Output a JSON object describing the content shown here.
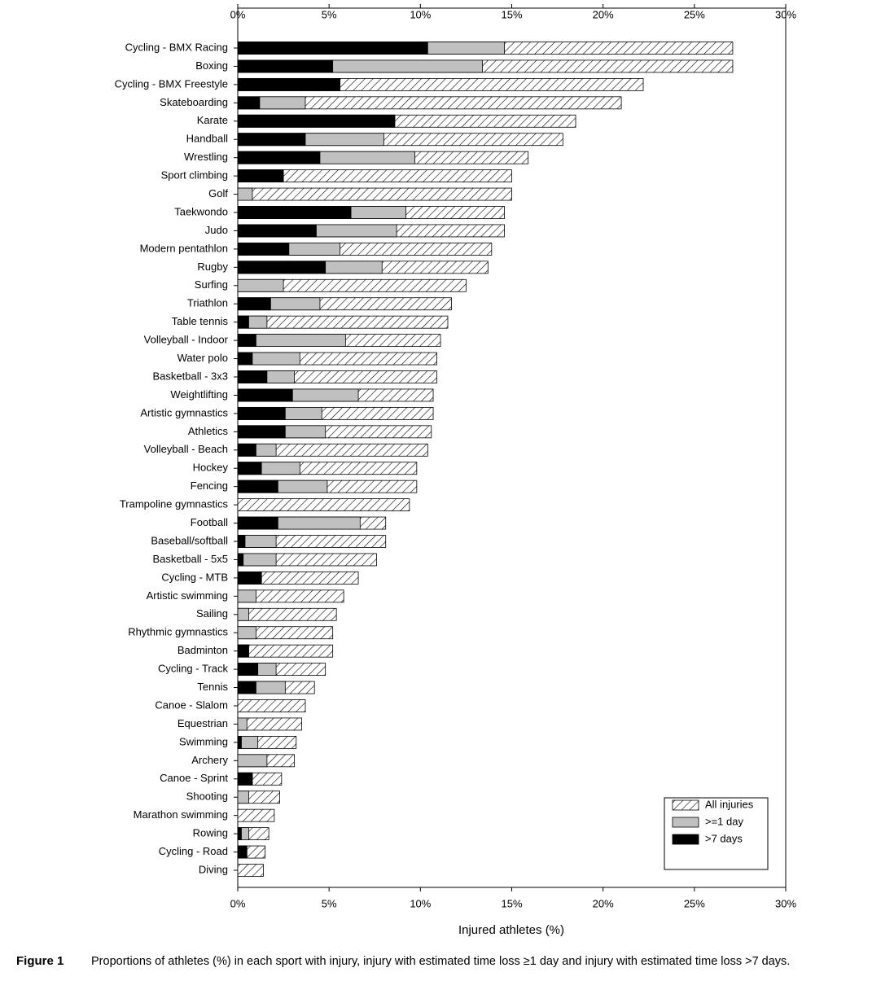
{
  "chart_data": {
    "type": "hbar",
    "xlabel": "Injured athletes (%)",
    "caption_label": "Figure 1",
    "caption": "Proportions of athletes (%) in each sport with injury, injury with estimated time loss ≥1 day and injury with estimated time loss >7 days.",
    "categories": [
      "Cycling - BMX Racing",
      "Boxing",
      "Cycling - BMX Freestyle",
      "Skateboarding",
      "Karate",
      "Handball",
      "Wrestling",
      "Sport climbing",
      "Golf",
      "Taekwondo",
      "Judo",
      "Modern pentathlon",
      "Rugby",
      "Surfing",
      "Triathlon",
      "Table tennis",
      "Volleyball - Indoor",
      "Water polo",
      "Basketball - 3x3",
      "Weightlifting",
      "Artistic gymnastics",
      "Athletics",
      "Volleyball - Beach",
      "Hockey",
      "Fencing",
      "Trampoline gymnastics",
      "Football",
      "Baseball/softball",
      "Basketball - 5x5",
      "Cycling - MTB",
      "Artistic swimming",
      "Sailing",
      "Rhythmic gymnastics",
      "Badminton",
      "Cycling - Track",
      "Tennis",
      "Canoe - Slalom",
      "Equestrian",
      "Swimming",
      "Archery",
      "Canoe - Sprint",
      "Shooting",
      "Marathon swimming",
      "Rowing",
      "Cycling - Road",
      "Diving"
    ],
    "series": [
      {
        "name": "All injuries",
        "color": "#000000",
        "hatch": true,
        "values": [
          27.1,
          27.1,
          22.2,
          21.0,
          18.5,
          17.8,
          15.9,
          15.0,
          15.0,
          14.6,
          14.6,
          13.9,
          13.7,
          12.5,
          11.7,
          11.5,
          11.1,
          10.9,
          10.9,
          10.7,
          10.7,
          10.6,
          10.4,
          9.8,
          9.8,
          9.4,
          8.1,
          8.1,
          7.6,
          6.6,
          5.8,
          5.4,
          5.2,
          5.2,
          4.8,
          4.2,
          3.7,
          3.5,
          3.2,
          3.1,
          2.4,
          2.3,
          2.0,
          1.7,
          1.5,
          1.4
        ]
      },
      {
        "name": ">=1 day",
        "color": "#c0c0c0",
        "hatch": false,
        "values": [
          14.6,
          13.4,
          5.6,
          3.7,
          8.6,
          8.0,
          9.7,
          2.5,
          0.8,
          9.2,
          8.7,
          5.6,
          7.9,
          2.5,
          4.5,
          1.6,
          5.9,
          3.4,
          3.1,
          6.6,
          4.6,
          4.8,
          2.1,
          3.4,
          4.9,
          0,
          6.7,
          2.1,
          2.1,
          1.3,
          1.0,
          0.6,
          1.0,
          0.6,
          2.1,
          2.6,
          0,
          0.5,
          1.1,
          1.6,
          0.8,
          0.6,
          0,
          0.6,
          0.5,
          0
        ]
      },
      {
        "name": ">7 days",
        "color": "#000000",
        "hatch": false,
        "values": [
          10.4,
          5.2,
          5.6,
          1.2,
          8.6,
          3.7,
          4.5,
          2.5,
          0,
          6.2,
          4.3,
          2.8,
          4.8,
          0,
          1.8,
          0.6,
          1.0,
          0.8,
          1.6,
          3.0,
          2.6,
          2.6,
          1.0,
          1.3,
          2.2,
          0,
          2.2,
          0.4,
          0.3,
          1.3,
          0,
          0,
          0,
          0.6,
          1.1,
          1.0,
          0,
          0,
          0.2,
          0,
          0.8,
          0,
          0,
          0.2,
          0.5,
          0
        ]
      }
    ],
    "xlim": [
      0,
      30
    ],
    "xticks": [
      {
        "value": 0,
        "label": "0%"
      },
      {
        "value": 5,
        "label": "5%"
      },
      {
        "value": 10,
        "label": "10%"
      },
      {
        "value": 15,
        "label": "15%"
      },
      {
        "value": 20,
        "label": "20%"
      },
      {
        "value": 25,
        "label": "25%"
      },
      {
        "value": 30,
        "label": "30%"
      }
    ],
    "legend": "lower right"
  }
}
